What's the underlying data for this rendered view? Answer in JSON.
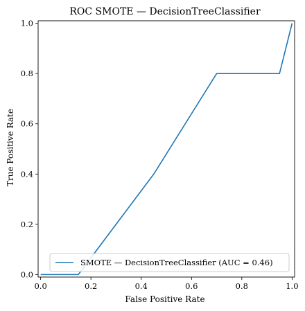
{
  "chart_data": {
    "type": "line",
    "title": "ROC SMOTE — DecisionTreeClassifier",
    "xlabel": "False Positive Rate",
    "ylabel": "True Positive Rate",
    "xlim": [
      -0.01,
      1.01
    ],
    "ylim": [
      -0.01,
      1.01
    ],
    "xticks": [
      0.0,
      0.2,
      0.4,
      0.6,
      0.8,
      1.0
    ],
    "xtick_labels": [
      "0.0",
      "0.2",
      "0.4",
      "0.6",
      "0.8",
      "1.0"
    ],
    "yticks": [
      0.0,
      0.2,
      0.4,
      0.6,
      0.8,
      1.0
    ],
    "ytick_labels": [
      "0.0",
      "0.2",
      "0.4",
      "0.6",
      "0.8",
      "1.0"
    ],
    "grid": false,
    "legend_placement": "lower-right",
    "series": [
      {
        "name": "SMOTE — DecisionTreeClassifier (AUC = 0.46)",
        "color": "#1f77b4",
        "x": [
          0.0,
          0.15,
          0.45,
          0.7,
          0.95,
          1.0
        ],
        "y": [
          0.0,
          0.0,
          0.4,
          0.8,
          0.8,
          1.0
        ]
      }
    ]
  }
}
